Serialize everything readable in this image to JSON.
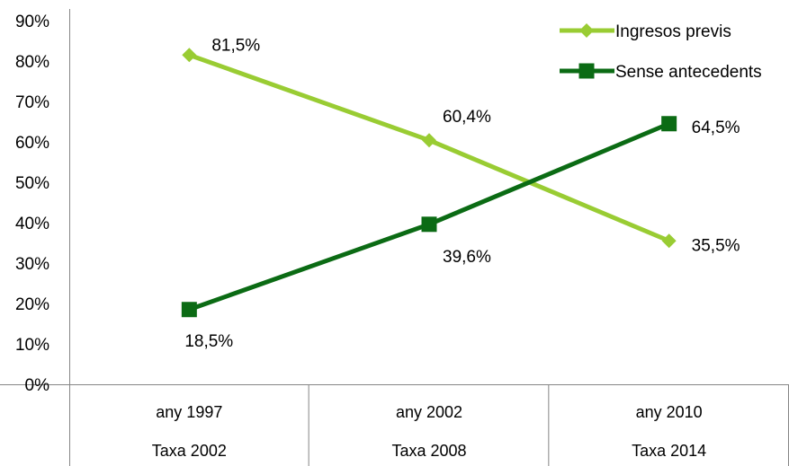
{
  "chart_data": {
    "type": "line",
    "categories": [
      [
        "any 1997",
        "Taxa 2002"
      ],
      [
        "any 2002",
        "Taxa 2008"
      ],
      [
        "any 2010",
        "Taxa 2014"
      ]
    ],
    "series": [
      {
        "name": "Ingresos previs",
        "values": [
          81.5,
          60.4,
          35.5
        ],
        "labels": [
          "81,5%",
          "60,4%",
          "35,5%"
        ],
        "color": "#99cc33",
        "marker": "diamond"
      },
      {
        "name": "Sense antecedents",
        "values": [
          18.5,
          39.6,
          64.5
        ],
        "labels": [
          "18,5%",
          "39,6%",
          "64,5%"
        ],
        "color": "#0b6b14",
        "marker": "square"
      }
    ],
    "y_ticks": [
      "0%",
      "10%",
      "20%",
      "30%",
      "40%",
      "50%",
      "60%",
      "70%",
      "80%",
      "90%"
    ],
    "ylim": [
      0,
      90
    ],
    "grid": false,
    "legend": "top-right"
  }
}
